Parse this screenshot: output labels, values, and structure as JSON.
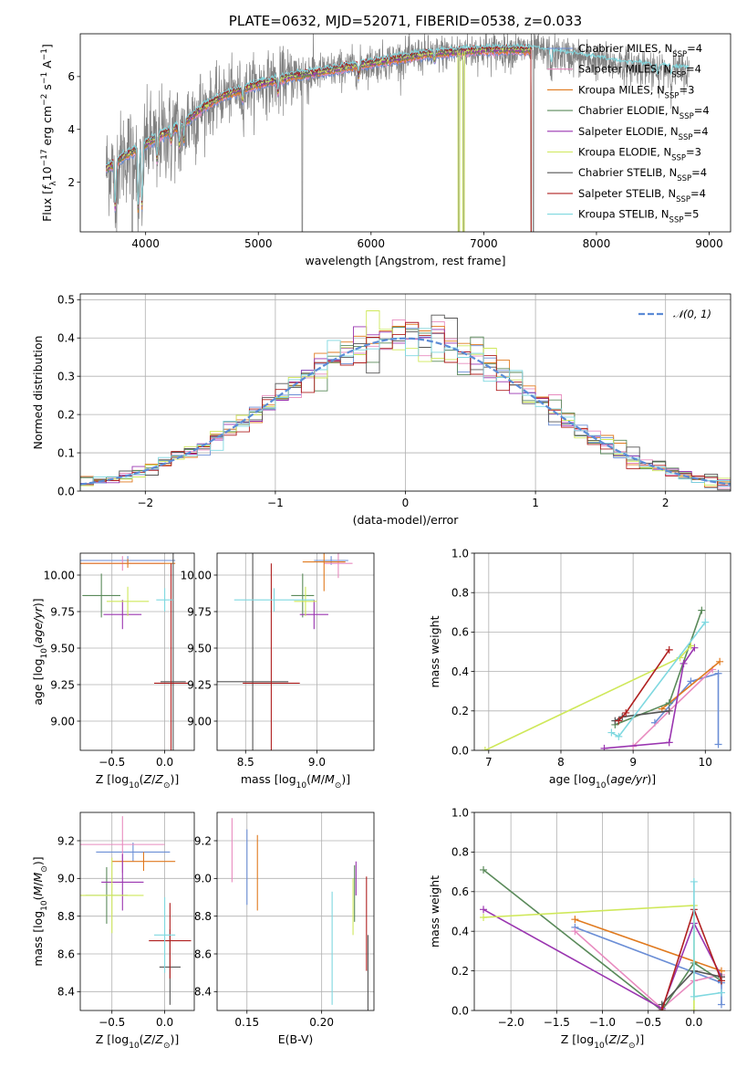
{
  "figure": {
    "title": "PLATE=0632, MJD=52071, FIBERID=0538, z=0.033"
  },
  "colors": {
    "cm": "#6b8ed6",
    "sm": "#e88bbf",
    "km": "#e07a1f",
    "ce": "#5a8a5a",
    "se": "#9a35b0",
    "ke": "#cfe85a",
    "cs": "#555555",
    "ss": "#b02020",
    "ks": "#7fd8e0",
    "grid": "#b0b0b0",
    "gauss": "#5b8bd6"
  },
  "legend": {
    "spectrum": [
      {
        "key": "cm",
        "text": "Chabrier MILES, N",
        "sub": "SSP",
        "val": "=4"
      },
      {
        "key": "sm",
        "text": "Salpeter MILES, N",
        "sub": "SSP",
        "val": "=4"
      },
      {
        "key": "km",
        "text": "Kroupa MILES, N",
        "sub": "SSP",
        "val": "=3"
      },
      {
        "key": "ce",
        "text": "Chabrier ELODIE, N",
        "sub": "SSP",
        "val": "=4"
      },
      {
        "key": "se",
        "text": "Salpeter ELODIE, N",
        "sub": "SSP",
        "val": "=4"
      },
      {
        "key": "ke",
        "text": "Kroupa ELODIE, N",
        "sub": "SSP",
        "val": "=3"
      },
      {
        "key": "cs",
        "text": "Chabrier STELIB, N",
        "sub": "SSP",
        "val": "=4"
      },
      {
        "key": "ss",
        "text": "Salpeter STELIB, N",
        "sub": "SSP",
        "val": "=4"
      },
      {
        "key": "ks",
        "text": "Kroupa STELIB, N",
        "sub": "SSP",
        "val": "=5"
      }
    ],
    "hist": "𝒩(0, 1)"
  },
  "chart_data": [
    {
      "id": "spectrum",
      "type": "line",
      "xlabel": "wavelength [Angstrom, rest frame]",
      "ylabel": "Flux [f_λ10^-17 erg cm^-2 s^-1 A^-1]",
      "xlim": [
        3420,
        9190
      ],
      "ylim": [
        0.12,
        7.62
      ],
      "xticks": [
        4000,
        5000,
        6000,
        7000,
        8000,
        9000
      ],
      "yticks": [
        2,
        4,
        6
      ],
      "data_range": [
        3650,
        8820
      ],
      "model_end": [
        7420,
        7420,
        7420,
        7420,
        7420,
        7420,
        7420,
        7420,
        8820
      ],
      "continuum": [
        [
          3650,
          2.5
        ],
        [
          3800,
          2.95
        ],
        [
          3950,
          3.3
        ],
        [
          4100,
          3.7
        ],
        [
          4300,
          4.1
        ],
        [
          4500,
          4.8
        ],
        [
          4700,
          5.3
        ],
        [
          5000,
          5.7
        ],
        [
          5300,
          6.0
        ],
        [
          5600,
          6.2
        ],
        [
          6000,
          6.5
        ],
        [
          6500,
          6.85
        ],
        [
          7000,
          7.0
        ],
        [
          7400,
          7.0
        ],
        [
          7800,
          6.75
        ],
        [
          8200,
          6.45
        ],
        [
          8500,
          6.35
        ],
        [
          8820,
          6.2
        ]
      ],
      "dips": [
        [
          3730,
          2.2
        ],
        [
          3934,
          2.9
        ],
        [
          3968,
          2.8
        ],
        [
          4102,
          1.1
        ],
        [
          4226,
          0.5
        ],
        [
          4300,
          0.9
        ],
        [
          4340,
          0.8
        ],
        [
          4861,
          0.5
        ],
        [
          5175,
          0.6
        ],
        [
          5890,
          0.5
        ],
        [
          6563,
          0.3
        ],
        [
          7600,
          0.6
        ],
        [
          8500,
          0.4
        ],
        [
          8542,
          0.5
        ],
        [
          8662,
          0.4
        ]
      ],
      "drops": [
        [
          3880,
          1.2
        ],
        [
          5390,
          1.2
        ],
        [
          6780,
          1.8
        ],
        [
          6820,
          1.5
        ],
        [
          7440,
          1.3
        ]
      ]
    },
    {
      "id": "residuals",
      "type": "histogram",
      "xlabel": "(data-model)/error",
      "ylabel": "Normed distribution",
      "xlim": [
        -2.5,
        2.5
      ],
      "ylim": [
        0,
        0.515
      ],
      "xticks": [
        -2,
        -1,
        0,
        1,
        2
      ],
      "yticks": [
        0.0,
        0.1,
        0.2,
        0.3,
        0.4,
        0.5
      ],
      "bin_width": 0.1,
      "gauss": {
        "mu": 0,
        "sigma": 1,
        "label": "𝒩(0, 1)"
      }
    },
    {
      "id": "age_vs_Z",
      "type": "errorbar",
      "xlabel": "Z [log10(Z/Z⊙)]",
      "ylabel": "age [log10(age/yr)]",
      "xlim": [
        -0.8,
        0.28
      ],
      "ylim": [
        8.8,
        10.15
      ],
      "xticks": [
        -0.5,
        0.0
      ],
      "yticks": [
        9.0,
        9.25,
        9.5,
        9.75,
        10.0
      ],
      "points": [
        {
          "key": "cm",
          "x": -0.35,
          "xe": 0.45,
          "y": 10.1,
          "ye": 0.03
        },
        {
          "key": "sm",
          "x": -0.4,
          "xe": 0.4,
          "y": 10.08,
          "ye": 0.05
        },
        {
          "key": "km",
          "x": -0.35,
          "xe": 0.45,
          "y": 10.08,
          "ye": 0.03
        },
        {
          "key": "ce",
          "x": -0.6,
          "xe": 0.18,
          "y": 9.86,
          "ye": 0.15
        },
        {
          "key": "se",
          "x": -0.4,
          "xe": 0.18,
          "y": 9.73,
          "ye": 0.1
        },
        {
          "key": "ke",
          "x": -0.35,
          "xe": 0.2,
          "y": 9.82,
          "ye": 0.1
        },
        {
          "key": "cs",
          "x": 0.08,
          "xe": 0.12,
          "y": 9.27,
          "ye": 1.28
        },
        {
          "key": "ss",
          "x": 0.06,
          "xe": 0.16,
          "y": 9.26,
          "ye": 0.82
        },
        {
          "key": "ks",
          "x": 0.0,
          "xe": 0.08,
          "y": 9.83,
          "ye": 0.08
        }
      ]
    },
    {
      "id": "age_vs_mass",
      "type": "errorbar",
      "xlabel": "mass [log10(M/M⊙)]",
      "ylabel": "",
      "xlim": [
        8.3,
        9.4
      ],
      "ylim": [
        8.8,
        10.15
      ],
      "xticks": [
        8.5,
        9.0
      ],
      "yticks": [
        9.0,
        9.25,
        9.5,
        9.75,
        10.0
      ],
      "points": [
        {
          "key": "cm",
          "x": 9.1,
          "xe": 0.12,
          "y": 10.1,
          "ye": 0.03
        },
        {
          "key": "sm",
          "x": 9.15,
          "xe": 0.1,
          "y": 10.08,
          "ye": 0.1
        },
        {
          "key": "km",
          "x": 9.05,
          "xe": 0.15,
          "y": 10.09,
          "ye": 0.2
        },
        {
          "key": "ce",
          "x": 8.9,
          "xe": 0.08,
          "y": 9.86,
          "ye": 0.15
        },
        {
          "key": "se",
          "x": 8.98,
          "xe": 0.1,
          "y": 9.73,
          "ye": 0.1
        },
        {
          "key": "ke",
          "x": 8.92,
          "xe": 0.08,
          "y": 9.82,
          "ye": 0.1
        },
        {
          "key": "cs",
          "x": 8.55,
          "xe": 0.25,
          "y": 9.27,
          "ye": 1.28
        },
        {
          "key": "ss",
          "x": 8.68,
          "xe": 0.2,
          "y": 9.26,
          "ye": 0.82
        },
        {
          "key": "ks",
          "x": 8.7,
          "xe": 0.28,
          "y": 9.83,
          "ye": 0.08
        }
      ]
    },
    {
      "id": "weight_vs_age",
      "type": "line",
      "xlabel": "age [log10(age/yr)]",
      "ylabel": "mass weight",
      "xlim": [
        6.8,
        10.35
      ],
      "ylim": [
        0.0,
        1.0
      ],
      "xticks": [
        7,
        8,
        9,
        10
      ],
      "yticks": [
        0.0,
        0.2,
        0.4,
        0.6,
        0.8,
        1.0
      ],
      "series": [
        {
          "key": "cm",
          "x": [
            9.3,
            9.8,
            10.18,
            10.18
          ],
          "y": [
            0.14,
            0.35,
            0.39,
            0.03
          ]
        },
        {
          "key": "sm",
          "x": [
            9.0,
            9.5,
            10.1
          ],
          "y": [
            0.02,
            0.2,
            0.41
          ]
        },
        {
          "key": "km",
          "x": [
            9.4,
            10.2
          ],
          "y": [
            0.21,
            0.45
          ]
        },
        {
          "key": "ce",
          "x": [
            8.75,
            9.5,
            9.95
          ],
          "y": [
            0.13,
            0.24,
            0.71
          ]
        },
        {
          "key": "se",
          "x": [
            8.6,
            9.5,
            9.7,
            9.85
          ],
          "y": [
            0.01,
            0.04,
            0.44,
            0.52
          ]
        },
        {
          "key": "ke",
          "x": [
            6.95,
            9.65,
            9.8
          ],
          "y": [
            0.0,
            0.47,
            0.53
          ]
        },
        {
          "key": "cs",
          "x": [
            8.75,
            8.85,
            9.5
          ],
          "y": [
            0.15,
            0.17,
            0.2
          ]
        },
        {
          "key": "ss",
          "x": [
            8.8,
            8.9,
            9.5
          ],
          "y": [
            0.15,
            0.19,
            0.51
          ]
        },
        {
          "key": "ks",
          "x": [
            8.7,
            8.8,
            10.0
          ],
          "y": [
            0.09,
            0.07,
            0.65
          ]
        }
      ]
    },
    {
      "id": "mass_vs_Z",
      "type": "errorbar",
      "xlabel": "Z [log10(Z/Z⊙)]",
      "ylabel": "mass [log10(M/M⊙)]",
      "xlim": [
        -0.8,
        0.28
      ],
      "ylim": [
        8.3,
        9.35
      ],
      "xticks": [
        -0.5,
        0.0
      ],
      "yticks": [
        8.4,
        8.6,
        8.8,
        9.0,
        9.2
      ],
      "points": [
        {
          "key": "cm",
          "x": -0.3,
          "xe": 0.35,
          "y": 9.14,
          "ye": 0.05
        },
        {
          "key": "sm",
          "x": -0.4,
          "xe": 0.4,
          "y": 9.18,
          "ye": 0.15
        },
        {
          "key": "km",
          "x": -0.2,
          "xe": 0.3,
          "y": 9.09,
          "ye": 0.05
        },
        {
          "key": "ce",
          "x": -0.55,
          "xe": 0.2,
          "y": 8.91,
          "ye": 0.15
        },
        {
          "key": "se",
          "x": -0.4,
          "xe": 0.2,
          "y": 8.98,
          "ye": 0.15
        },
        {
          "key": "ke",
          "x": -0.5,
          "xe": 0.3,
          "y": 8.91,
          "ye": 0.2
        },
        {
          "key": "cs",
          "x": 0.05,
          "xe": 0.1,
          "y": 8.53,
          "ye": 0.2
        },
        {
          "key": "ss",
          "x": 0.05,
          "xe": 0.2,
          "y": 8.67,
          "ye": 0.2
        },
        {
          "key": "ks",
          "x": 0.0,
          "xe": 0.1,
          "y": 8.7,
          "ye": 0.2
        }
      ]
    },
    {
      "id": "mass_vs_ebv",
      "type": "errorbar",
      "xlabel": "E(B-V)",
      "ylabel": "",
      "xlim": [
        0.13,
        0.235
      ],
      "ylim": [
        8.3,
        9.35
      ],
      "xticks": [
        0.15,
        0.2
      ],
      "yticks": [
        8.4,
        8.6,
        8.8,
        9.0,
        9.2
      ],
      "points": [
        {
          "key": "cm",
          "x": 0.15,
          "xe": 0,
          "y": 9.06,
          "ye": 0.2
        },
        {
          "key": "sm",
          "x": 0.14,
          "xe": 0,
          "y": 9.15,
          "ye": 0.17
        },
        {
          "key": "km",
          "x": 0.157,
          "xe": 0,
          "y": 9.03,
          "ye": 0.2
        },
        {
          "key": "ce",
          "x": 0.222,
          "xe": 0,
          "y": 8.92,
          "ye": 0.15
        },
        {
          "key": "se",
          "x": 0.223,
          "xe": 0,
          "y": 9.0,
          "ye": 0.09
        },
        {
          "key": "ke",
          "x": 0.221,
          "xe": 0,
          "y": 8.85,
          "ye": 0.15
        },
        {
          "key": "cs",
          "x": 0.231,
          "xe": 0,
          "y": 8.5,
          "ye": 0.2
        },
        {
          "key": "ss",
          "x": 0.23,
          "xe": 0,
          "y": 8.76,
          "ye": 0.25
        },
        {
          "key": "ks",
          "x": 0.207,
          "xe": 0,
          "y": 8.63,
          "ye": 0.3
        }
      ]
    },
    {
      "id": "weight_vs_Z",
      "type": "line",
      "xlabel": "Z [log10(Z/Z⊙)]",
      "ylabel": "mass weight",
      "xlim": [
        -2.4,
        0.4
      ],
      "ylim": [
        0.0,
        1.0
      ],
      "xticks": [
        -2.0,
        -1.5,
        -1.0,
        -0.5,
        0.0
      ],
      "yticks": [
        0.0,
        0.2,
        0.4,
        0.6,
        0.8,
        1.0
      ],
      "series": [
        {
          "key": "cm",
          "x": [
            -1.3,
            0.3,
            0.3
          ],
          "y": [
            0.42,
            0.14,
            0.03
          ]
        },
        {
          "key": "sm",
          "x": [
            -1.3,
            -0.35,
            0.0,
            0.3
          ],
          "y": [
            0.4,
            0.01,
            0.15,
            0.18
          ]
        },
        {
          "key": "km",
          "x": [
            -1.3,
            0.3
          ],
          "y": [
            0.46,
            0.2
          ]
        },
        {
          "key": "ce",
          "x": [
            -2.3,
            -0.35,
            0.0,
            0.3
          ],
          "y": [
            0.71,
            0.0,
            0.24,
            0.15
          ]
        },
        {
          "key": "se",
          "x": [
            -2.3,
            -0.35,
            0.0,
            0.3
          ],
          "y": [
            0.51,
            0.01,
            0.44,
            0.17
          ]
        },
        {
          "key": "ke",
          "x": [
            -2.3,
            0.0,
            0.0
          ],
          "y": [
            0.47,
            0.53,
            0.0
          ]
        },
        {
          "key": "cs",
          "x": [
            -0.35,
            0.0,
            0.3
          ],
          "y": [
            0.03,
            0.2,
            0.17
          ]
        },
        {
          "key": "ss",
          "x": [
            -0.35,
            0.0,
            0.3
          ],
          "y": [
            0.0,
            0.51,
            0.15
          ]
        },
        {
          "key": "ks",
          "x": [
            0.0,
            0.0,
            0.3
          ],
          "y": [
            0.65,
            0.07,
            0.09
          ]
        }
      ]
    }
  ]
}
